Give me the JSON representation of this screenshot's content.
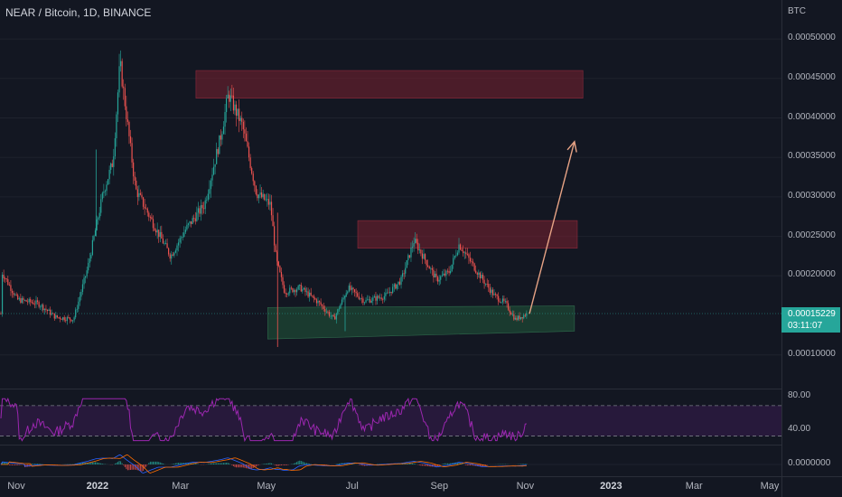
{
  "header": {
    "title": "NEAR / Bitcoin, 1D, BINANCE"
  },
  "price_axis": {
    "currency": "BTC",
    "ticks": [
      0.0005,
      0.00045,
      0.0004,
      0.00035,
      0.0003,
      0.00025,
      0.0002,
      0.0001
    ],
    "tick_labels": [
      "0.00050000",
      "0.00045000",
      "0.00040000",
      "0.00035000",
      "0.00030000",
      "0.00025000",
      "0.00020000",
      "0.00010000"
    ],
    "current_price": "0.00015229",
    "countdown": "03:11:07"
  },
  "rsi_axis": {
    "labels": [
      "80.00",
      "40.00"
    ]
  },
  "macd_axis": {
    "labels": [
      "0.0000000"
    ]
  },
  "time_axis": {
    "labels": [
      {
        "text": "Nov",
        "bold": false
      },
      {
        "text": "2022",
        "bold": true
      },
      {
        "text": "Mar",
        "bold": false
      },
      {
        "text": "May",
        "bold": false
      },
      {
        "text": "Jul",
        "bold": false
      },
      {
        "text": "Sep",
        "bold": false
      },
      {
        "text": "Nov",
        "bold": false
      },
      {
        "text": "2023",
        "bold": true
      },
      {
        "text": "Mar",
        "bold": false
      },
      {
        "text": "May",
        "bold": false
      }
    ]
  },
  "colors": {
    "background": "#131722",
    "bull": "#26a69a",
    "bear": "#ef5350",
    "resistance_zone": "#7a2030",
    "support_zone": "#1e4a35",
    "rsi_line": "#9c27b0",
    "rsi_band": "#2a1a3e",
    "arrow": "#e7a385"
  },
  "chart_data": {
    "type": "candlestick",
    "symbol": "NEAR / Bitcoin",
    "interval": "1D",
    "exchange": "BINANCE",
    "price_path": [
      [
        "2021-10-25",
        0.000205
      ],
      [
        "2021-11-05",
        0.00017
      ],
      [
        "2021-11-20",
        0.000165
      ],
      [
        "2021-12-02",
        0.000148
      ],
      [
        "2021-12-15",
        0.000145
      ],
      [
        "2021-12-25",
        0.00021
      ],
      [
        "2022-01-05",
        0.000305
      ],
      [
        "2022-01-12",
        0.000345
      ],
      [
        "2022-01-17",
        0.00047
      ],
      [
        "2022-01-28",
        0.00031
      ],
      [
        "2022-02-10",
        0.000265
      ],
      [
        "2022-02-22",
        0.000225
      ],
      [
        "2022-03-05",
        0.00026
      ],
      [
        "2022-03-18",
        0.00029
      ],
      [
        "2022-03-30",
        0.00038
      ],
      [
        "2022-04-04",
        0.00043
      ],
      [
        "2022-04-14",
        0.00039
      ],
      [
        "2022-04-24",
        0.000305
      ],
      [
        "2022-05-04",
        0.00029
      ],
      [
        "2022-05-08",
        0.00022
      ],
      [
        "2022-05-14",
        0.00018
      ],
      [
        "2022-05-25",
        0.000185
      ],
      [
        "2022-06-08",
        0.000165
      ],
      [
        "2022-06-18",
        0.000145
      ],
      [
        "2022-06-28",
        0.000185
      ],
      [
        "2022-07-10",
        0.000168
      ],
      [
        "2022-07-25",
        0.000175
      ],
      [
        "2022-08-05",
        0.000195
      ],
      [
        "2022-08-14",
        0.000245
      ],
      [
        "2022-08-30",
        0.000195
      ],
      [
        "2022-09-08",
        0.000205
      ],
      [
        "2022-09-15",
        0.00024
      ],
      [
        "2022-09-28",
        0.000205
      ],
      [
        "2022-10-10",
        0.000175
      ],
      [
        "2022-10-18",
        0.000165
      ],
      [
        "2022-10-25",
        0.000145
      ],
      [
        "2022-11-02",
        0.000152
      ]
    ],
    "resistance_zones": [
      {
        "from": "2022-03-12",
        "to": "2022-12-12",
        "low": 0.000425,
        "high": 0.00046
      },
      {
        "from": "2022-07-05",
        "to": "2022-12-08",
        "low": 0.000235,
        "high": 0.00027
      }
    ],
    "support_zone": {
      "from": "2022-05-02",
      "to": "2022-12-06",
      "low_start": 0.00012,
      "high_start": 0.00016,
      "low_end": 0.00013,
      "high_end": 0.000162
    },
    "projection_arrow": {
      "from": [
        "2022-11-04",
        0.000152
      ],
      "to": [
        "2022-12-06",
        0.00037
      ]
    },
    "rsi": {
      "levels": [
        70,
        30
      ],
      "ylim": [
        20,
        90
      ]
    },
    "ylim": [
      8e-05,
      0.00052
    ]
  }
}
